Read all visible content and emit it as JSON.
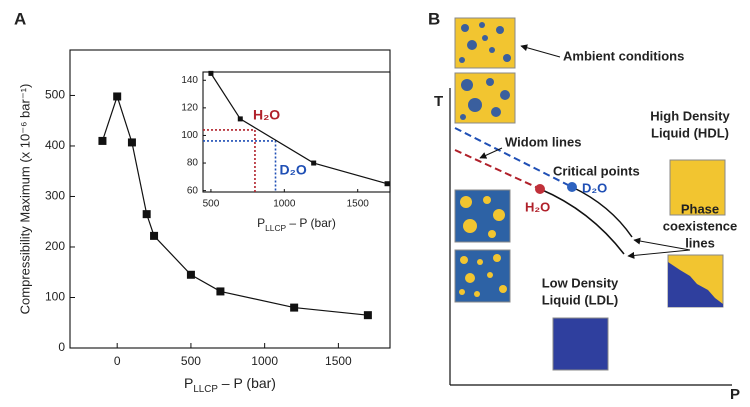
{
  "chart_data": [
    {
      "type": "line",
      "panel": "A",
      "x": [
        -100,
        0,
        100,
        200,
        250,
        500,
        700,
        1200,
        1700
      ],
      "values": [
        410,
        498,
        407,
        265,
        222,
        145,
        112,
        80,
        65
      ],
      "color": "#111",
      "xlim": [
        -320,
        1850
      ],
      "xticks": [
        0,
        500,
        1000,
        1500
      ],
      "ylim": [
        0,
        590
      ],
      "yticks": [
        0,
        100,
        200,
        300,
        400,
        500
      ],
      "ylabel": "Compressibility Maximum (x 10⁻⁶ bar⁻¹)",
      "xlabel": [
        "P",
        "LLCP",
        " – P (bar)"
      ]
    },
    {
      "type": "line",
      "x": [
        500,
        700,
        1200,
        1700
      ],
      "values": [
        145,
        112,
        80,
        65
      ],
      "color": "#111",
      "xlim": [
        446,
        1720
      ],
      "xticks": [
        500,
        1000,
        1500
      ],
      "ylim": [
        59,
        146
      ],
      "yticks": [
        60,
        80,
        100,
        120,
        140
      ],
      "xlabel": [
        "P",
        "LLCP",
        " – P (bar)"
      ],
      "reference_lines": [
        {
          "label": "H₂O",
          "x": 800,
          "y": 104,
          "color": "#b0202a"
        },
        {
          "label": "D₂O",
          "x": 940,
          "y": 96,
          "color": "#1f4fb5"
        }
      ]
    }
  ],
  "diagram": {
    "panel": "B",
    "y_axis": "T",
    "x_axis": "P",
    "ambient": "Ambient conditions",
    "hdl": [
      "High Density",
      "Liquid (HDL)"
    ],
    "widom": "Widom lines",
    "critical": "Critical points",
    "h2o": "H₂O",
    "d2o": "D₂O",
    "coexistence": [
      "Phase",
      "coexistence",
      "lines"
    ],
    "ldl": [
      "Low Density",
      "Liquid (LDL)"
    ]
  }
}
